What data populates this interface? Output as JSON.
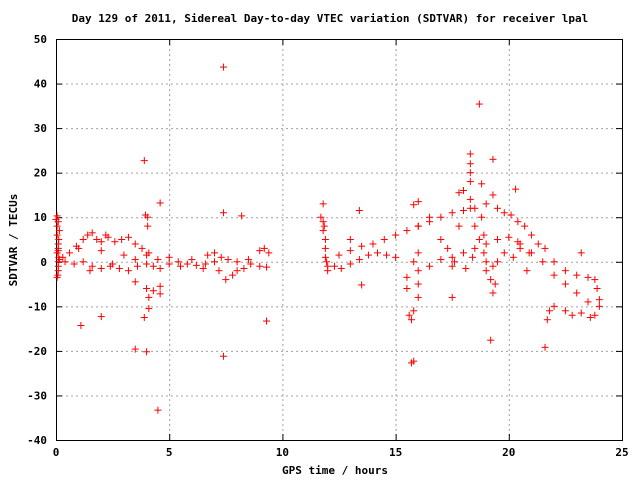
{
  "chart_data": {
    "type": "scatter",
    "title": "Day 129 of 2011, Sidereal Day-to-day VTEC variation (SDTVAR) for receiver lpal",
    "xlabel": "GPS time / hours",
    "ylabel": "SDTVAR / TECUs",
    "xlim": [
      0,
      25
    ],
    "ylim": [
      -40,
      50
    ],
    "xticks": [
      "0",
      "5",
      "10",
      "15",
      "20",
      "25"
    ],
    "xtick_values": [
      0,
      5,
      10,
      15,
      20,
      25
    ],
    "yticks": [
      "-40",
      "-30",
      "-20",
      "-10",
      "0",
      "10",
      "20",
      "30",
      "40",
      "50"
    ],
    "ytick_values": [
      -40,
      -30,
      -20,
      -10,
      0,
      10,
      20,
      30,
      40,
      50
    ],
    "grid": true,
    "marker": "+",
    "marker_color": "#ff0000",
    "series": [
      {
        "points": [
          [
            0.0,
            9.5
          ],
          [
            0.05,
            10.3
          ],
          [
            0.05,
            8.0
          ],
          [
            0.05,
            6.0
          ],
          [
            0.1,
            4.0
          ],
          [
            0.05,
            2.0
          ],
          [
            0.1,
            0.0
          ],
          [
            0.1,
            -2.0
          ],
          [
            0.05,
            -3.5
          ],
          [
            0.1,
            9.0
          ],
          [
            0.15,
            7.0
          ],
          [
            0.12,
            5.0
          ],
          [
            0.1,
            3.0
          ],
          [
            0.12,
            1.0
          ],
          [
            0.1,
            -1.0
          ],
          [
            0.15,
            0.5
          ],
          [
            0.1,
            2.5
          ],
          [
            0.08,
            -3.0
          ],
          [
            0.3,
            1.0
          ],
          [
            0.6,
            2.0
          ],
          [
            0.9,
            3.5
          ],
          [
            1.2,
            5.0
          ],
          [
            1.4,
            6.0
          ],
          [
            1.6,
            6.5
          ],
          [
            1.8,
            5.0
          ],
          [
            2.0,
            4.5
          ],
          [
            2.3,
            5.5
          ],
          [
            2.6,
            4.5
          ],
          [
            2.9,
            5.0
          ],
          [
            3.2,
            5.5
          ],
          [
            3.5,
            4.0
          ],
          [
            3.8,
            3.0
          ],
          [
            4.1,
            2.0
          ],
          [
            0.4,
            0.0
          ],
          [
            0.8,
            -0.5
          ],
          [
            1.2,
            0.0
          ],
          [
            1.6,
            -1.0
          ],
          [
            2.0,
            -1.5
          ],
          [
            2.4,
            -1.0
          ],
          [
            2.8,
            -1.5
          ],
          [
            3.2,
            -2.0
          ],
          [
            3.6,
            -1.0
          ],
          [
            4.0,
            -0.5
          ],
          [
            4.3,
            -1.0
          ],
          [
            4.6,
            -1.5
          ],
          [
            5.0,
            -0.5
          ],
          [
            5.4,
            0.0
          ],
          [
            5.8,
            -0.5
          ],
          [
            6.2,
            -0.8
          ],
          [
            6.6,
            -0.5
          ],
          [
            7.0,
            0.0
          ],
          [
            7.2,
            -2.0
          ],
          [
            7.5,
            -4.0
          ],
          [
            7.8,
            -3.0
          ],
          [
            8.0,
            -2.0
          ],
          [
            8.3,
            -1.5
          ],
          [
            8.6,
            -0.5
          ],
          [
            9.0,
            -1.0
          ],
          [
            9.3,
            -1.2
          ],
          [
            6.7,
            1.5
          ],
          [
            7.0,
            2.0
          ],
          [
            7.3,
            1.0
          ],
          [
            7.6,
            0.5
          ],
          [
            8.0,
            0.0
          ],
          [
            8.5,
            0.5
          ],
          [
            9.0,
            2.5
          ],
          [
            9.2,
            3.0
          ],
          [
            9.4,
            2.0
          ],
          [
            1.0,
            3.0
          ],
          [
            2.0,
            2.5
          ],
          [
            3.0,
            1.5
          ],
          [
            4.0,
            1.5
          ],
          [
            5.0,
            1.0
          ],
          [
            6.0,
            0.5
          ],
          [
            1.5,
            -2.0
          ],
          [
            2.5,
            -0.5
          ],
          [
            3.5,
            0.5
          ],
          [
            4.5,
            0.5
          ],
          [
            5.5,
            -1.0
          ],
          [
            6.5,
            -1.5
          ],
          [
            3.9,
            22.7
          ],
          [
            3.95,
            10.5
          ],
          [
            4.05,
            10.0
          ],
          [
            4.05,
            8.0
          ],
          [
            4.6,
            13.2
          ],
          [
            7.4,
            43.7
          ],
          [
            7.4,
            11.0
          ],
          [
            8.2,
            10.3
          ],
          [
            1.1,
            -14.3
          ],
          [
            2.0,
            -12.3
          ],
          [
            3.5,
            -19.6
          ],
          [
            3.5,
            -4.5
          ],
          [
            3.9,
            -12.5
          ],
          [
            4.0,
            -20.2
          ],
          [
            4.1,
            -10.5
          ],
          [
            4.1,
            -8.0
          ],
          [
            4.0,
            -6.0
          ],
          [
            4.3,
            -6.5
          ],
          [
            4.6,
            -7.2
          ],
          [
            4.6,
            -5.5
          ],
          [
            4.5,
            -33.3
          ],
          [
            7.4,
            -21.2
          ],
          [
            9.3,
            -13.3
          ],
          [
            2.2,
            6.0
          ],
          [
            11.8,
            13.0
          ],
          [
            11.7,
            10.0
          ],
          [
            11.8,
            9.0
          ],
          [
            11.85,
            8.0
          ],
          [
            11.8,
            7.0
          ],
          [
            11.9,
            5.0
          ],
          [
            11.9,
            3.0
          ],
          [
            11.9,
            1.0
          ],
          [
            11.95,
            0.0
          ],
          [
            12.0,
            -1.0
          ],
          [
            12.0,
            -2.0
          ],
          [
            12.3,
            -1.0
          ],
          [
            12.6,
            -1.5
          ],
          [
            13.0,
            -0.5
          ],
          [
            13.4,
            0.5
          ],
          [
            13.8,
            1.5
          ],
          [
            14.2,
            2.0
          ],
          [
            14.6,
            1.5
          ],
          [
            15.0,
            1.0
          ],
          [
            12.5,
            1.5
          ],
          [
            13.0,
            2.5
          ],
          [
            13.5,
            3.5
          ],
          [
            14.0,
            4.0
          ],
          [
            14.5,
            5.0
          ],
          [
            15.0,
            6.0
          ],
          [
            15.5,
            7.0
          ],
          [
            16.0,
            8.0
          ],
          [
            16.5,
            9.0
          ],
          [
            17.0,
            10.0
          ],
          [
            17.5,
            11.0
          ],
          [
            18.0,
            11.5
          ],
          [
            18.5,
            12.0
          ],
          [
            19.0,
            13.0
          ],
          [
            19.3,
            15.0
          ],
          [
            19.5,
            12.0
          ],
          [
            19.8,
            11.0
          ],
          [
            20.1,
            10.5
          ],
          [
            20.4,
            9.0
          ],
          [
            20.7,
            8.0
          ],
          [
            21.0,
            6.0
          ],
          [
            21.3,
            4.0
          ],
          [
            21.6,
            3.0
          ],
          [
            22.0,
            0.0
          ],
          [
            22.5,
            -2.0
          ],
          [
            23.0,
            -3.0
          ],
          [
            23.5,
            -3.5
          ],
          [
            23.8,
            -4.0
          ],
          [
            24.0,
            -8.5
          ],
          [
            15.5,
            -3.5
          ],
          [
            16.0,
            -2.0
          ],
          [
            16.5,
            -1.0
          ],
          [
            17.0,
            0.5
          ],
          [
            17.5,
            1.0
          ],
          [
            18.0,
            2.0
          ],
          [
            18.5,
            3.0
          ],
          [
            19.0,
            4.0
          ],
          [
            19.5,
            5.0
          ],
          [
            20.0,
            5.5
          ],
          [
            20.5,
            4.0
          ],
          [
            21.0,
            2.0
          ],
          [
            21.5,
            0.0
          ],
          [
            22.0,
            -3.0
          ],
          [
            22.5,
            -5.0
          ],
          [
            23.0,
            -7.0
          ],
          [
            23.5,
            -9.0
          ],
          [
            23.8,
            -12.0
          ],
          [
            22.0,
            -10.0
          ],
          [
            21.7,
            -13.0
          ],
          [
            21.8,
            -11.0
          ],
          [
            22.5,
            -11.0
          ],
          [
            16.0,
            8.0
          ],
          [
            16.5,
            10.0
          ],
          [
            17.0,
            5.0
          ],
          [
            17.3,
            3.0
          ],
          [
            17.6,
            0.0
          ],
          [
            17.8,
            8.0
          ],
          [
            17.8,
            15.5
          ],
          [
            18.0,
            16.0
          ],
          [
            18.3,
            24.2
          ],
          [
            18.3,
            22.0
          ],
          [
            18.3,
            20.0
          ],
          [
            18.3,
            18.0
          ],
          [
            18.3,
            14.0
          ],
          [
            18.3,
            12.0
          ],
          [
            18.5,
            8.0
          ],
          [
            18.7,
            5.0
          ],
          [
            18.9,
            2.0
          ],
          [
            19.0,
            -2.0
          ],
          [
            19.2,
            -4.0
          ],
          [
            19.3,
            -7.0
          ],
          [
            19.4,
            -5.0
          ],
          [
            18.8,
            17.5
          ],
          [
            18.8,
            10.0
          ],
          [
            18.9,
            6.0
          ],
          [
            19.0,
            0.0
          ],
          [
            19.3,
            -1.0
          ],
          [
            19.5,
            0.0
          ],
          [
            19.8,
            2.0
          ],
          [
            20.2,
            1.0
          ],
          [
            20.5,
            3.0
          ],
          [
            20.9,
            2.0
          ],
          [
            20.8,
            -2.0
          ],
          [
            17.5,
            -1.0
          ],
          [
            17.5,
            -8.0
          ],
          [
            16.0,
            2.0
          ],
          [
            15.8,
            0.0
          ],
          [
            15.5,
            -6.0
          ],
          [
            15.7,
            -13.0
          ],
          [
            15.8,
            -11.0
          ],
          [
            15.6,
            -12.0
          ],
          [
            16.0,
            -5.0
          ],
          [
            16.0,
            -8.0
          ],
          [
            13.4,
            11.5
          ],
          [
            13.0,
            5.0
          ],
          [
            13.5,
            -5.2
          ],
          [
            15.8,
            12.8
          ],
          [
            16.0,
            13.5
          ],
          [
            15.7,
            -22.7
          ],
          [
            15.8,
            -22.3
          ],
          [
            18.7,
            35.4
          ],
          [
            19.3,
            23.0
          ],
          [
            20.3,
            16.3
          ],
          [
            19.2,
            -17.6
          ],
          [
            21.6,
            -19.2
          ],
          [
            23.2,
            2.0
          ],
          [
            20.4,
            4.5
          ],
          [
            18.4,
            1.0
          ],
          [
            18.1,
            -1.5
          ],
          [
            24.0,
            -10.0
          ],
          [
            23.9,
            -6.0
          ],
          [
            23.6,
            -12.5
          ],
          [
            23.2,
            -11.5
          ],
          [
            22.8,
            -12.0
          ]
        ]
      }
    ]
  }
}
